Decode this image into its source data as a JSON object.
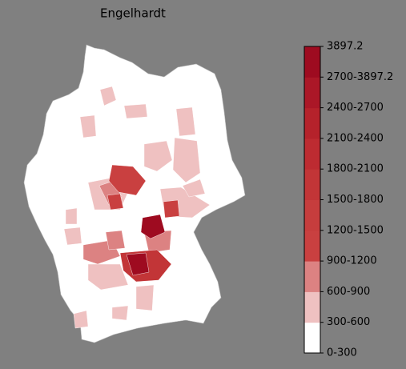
{
  "title": "Engelhardt",
  "colorbar": {
    "labels": [
      "0-300",
      "300-600",
      "600-900",
      "900-1200",
      "1200-1500",
      "1500-1800",
      "1800-2100",
      "2100-2400",
      "2400-2700",
      "2700-3897.2",
      "3897.2"
    ],
    "colors": [
      "#ffffff",
      "#efc1c1",
      "#dc8282",
      "#c94040",
      "#c63d3d",
      "#c23537",
      "#bd2b31",
      "#b5222b",
      "#ab1727",
      "#9e0b20"
    ]
  }
}
